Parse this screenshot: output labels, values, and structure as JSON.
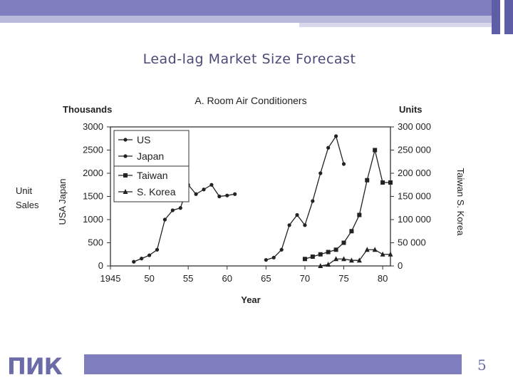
{
  "slide": {
    "title": "Lead-lag Market Size Forecast",
    "logo_text": "ПИК",
    "page_number": "5",
    "colors": {
      "accent": "#7f7fbf",
      "accent_dark": "#5e5ea6",
      "title": "#4a4a7a"
    }
  },
  "chart_data": {
    "type": "line",
    "title": "A. Room Air Conditioners",
    "xlabel": "Year",
    "x_ticks": [
      "1945",
      "50",
      "55",
      "60",
      "65",
      "70",
      "75",
      "80"
    ],
    "xlim": [
      1945,
      1981
    ],
    "left_axis": {
      "unit_label": "Thousands",
      "side_label": "USA Japan",
      "outer_label": "Unit Sales",
      "ylim": [
        0,
        3000
      ],
      "ticks": [
        "0",
        "500",
        "1000",
        "1500",
        "2000",
        "2500",
        "3000"
      ]
    },
    "right_axis": {
      "unit_label": "Units",
      "side_label": "Taiwan S. Korea",
      "ylim": [
        0,
        300000
      ],
      "ticks": [
        "0",
        "50 000",
        "100 000",
        "150 000",
        "200 000",
        "250 000",
        "300 000"
      ]
    },
    "legend_position": "top-left",
    "series": [
      {
        "name": "US",
        "axis": "left",
        "marker": "circle",
        "x": [
          1948,
          1949,
          1950,
          1951,
          1952,
          1953,
          1954,
          1955,
          1956,
          1957,
          1958,
          1959,
          1960,
          1961
        ],
        "y": [
          90,
          160,
          230,
          350,
          1000,
          1200,
          1250,
          1750,
          1550,
          1650,
          1750,
          1500,
          1520,
          1550
        ]
      },
      {
        "name": "Japan",
        "axis": "left",
        "marker": "circle",
        "x": [
          1965,
          1966,
          1967,
          1968,
          1969,
          1970,
          1971,
          1972,
          1973,
          1974,
          1975
        ],
        "y": [
          130,
          180,
          350,
          880,
          1100,
          880,
          1400,
          2000,
          2550,
          2800,
          2200
        ]
      },
      {
        "name": "Taiwan",
        "axis": "right",
        "marker": "square",
        "x": [
          1970,
          1971,
          1972,
          1973,
          1974,
          1975,
          1976,
          1977,
          1978,
          1979,
          1980,
          1981
        ],
        "y": [
          15000,
          20000,
          25000,
          30000,
          35000,
          50000,
          75000,
          110000,
          185000,
          250000,
          180000,
          180000
        ]
      },
      {
        "name": "S. Korea",
        "axis": "right",
        "marker": "triangle",
        "x": [
          1972,
          1973,
          1974,
          1975,
          1976,
          1977,
          1978,
          1979,
          1980,
          1981
        ],
        "y": [
          0,
          3000,
          15000,
          15000,
          12000,
          12000,
          35000,
          35000,
          25000,
          25000
        ]
      }
    ]
  }
}
